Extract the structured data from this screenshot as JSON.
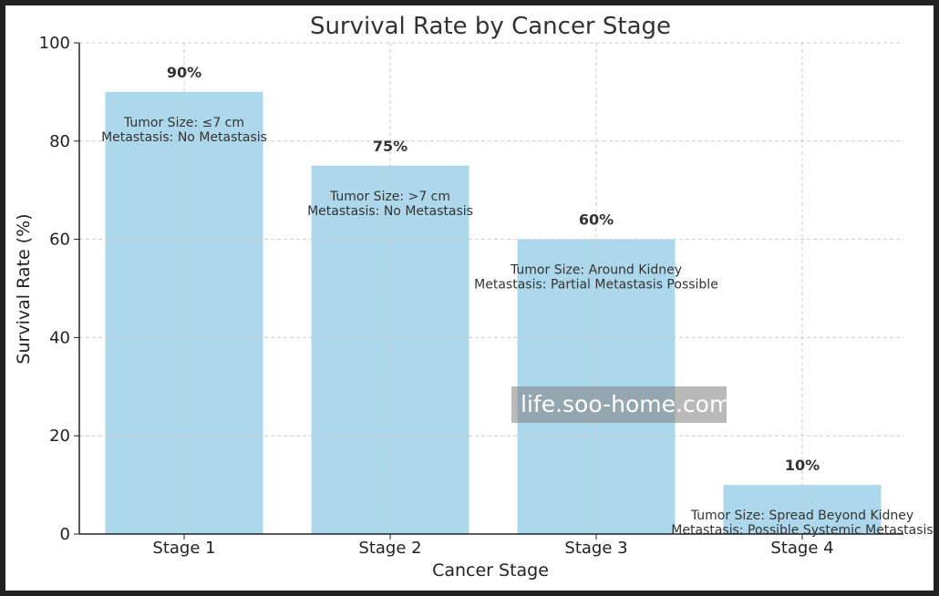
{
  "chart_data": {
    "type": "bar",
    "title": "Survival Rate by Cancer Stage",
    "xlabel": "Cancer Stage",
    "ylabel": "Survival Rate (%)",
    "ylim": [
      0,
      100
    ],
    "yticks": [
      0,
      20,
      40,
      60,
      80,
      100
    ],
    "grid": true,
    "categories": [
      "Stage 1",
      "Stage 2",
      "Stage 3",
      "Stage 4"
    ],
    "values": [
      90,
      75,
      60,
      10
    ],
    "value_labels": [
      "90%",
      "75%",
      "60%",
      "10%"
    ],
    "annotations": [
      {
        "tumor": "Tumor Size: ≤7 cm",
        "metastasis": "Metastasis: No Metastasis"
      },
      {
        "tumor": "Tumor Size: >7 cm",
        "metastasis": "Metastasis: No Metastasis"
      },
      {
        "tumor": "Tumor Size: Around Kidney",
        "metastasis": "Metastasis: Partial Metastasis Possible"
      },
      {
        "tumor": "Tumor Size: Spread Beyond Kidney",
        "metastasis": "Metastasis: Possible Systemic Metastasis"
      }
    ],
    "bar_color": "#add8ec",
    "watermark": "life.soo-home.com"
  }
}
